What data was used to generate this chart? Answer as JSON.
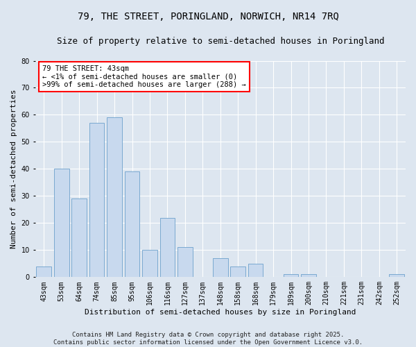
{
  "title": "79, THE STREET, PORINGLAND, NORWICH, NR14 7RQ",
  "subtitle": "Size of property relative to semi-detached houses in Poringland",
  "xlabel": "Distribution of semi-detached houses by size in Poringland",
  "ylabel": "Number of semi-detached properties",
  "bar_color": "#c8d9ee",
  "bar_edge_color": "#6ca0cc",
  "background_color": "#dde6f0",
  "categories": [
    "43sqm",
    "53sqm",
    "64sqm",
    "74sqm",
    "85sqm",
    "95sqm",
    "106sqm",
    "116sqm",
    "127sqm",
    "137sqm",
    "148sqm",
    "158sqm",
    "168sqm",
    "179sqm",
    "189sqm",
    "200sqm",
    "210sqm",
    "221sqm",
    "231sqm",
    "242sqm",
    "252sqm"
  ],
  "values": [
    4,
    40,
    29,
    57,
    59,
    39,
    10,
    22,
    11,
    0,
    7,
    4,
    5,
    0,
    1,
    1,
    0,
    0,
    0,
    0,
    1
  ],
  "ylim": [
    0,
    80
  ],
  "yticks": [
    0,
    10,
    20,
    30,
    40,
    50,
    60,
    70,
    80
  ],
  "annotation_title": "79 THE STREET: 43sqm",
  "annotation_line2": "← <1% of semi-detached houses are smaller (0)",
  "annotation_line3": ">99% of semi-detached houses are larger (288) →",
  "highlight_bar_index": 0,
  "footer_line1": "Contains HM Land Registry data © Crown copyright and database right 2025.",
  "footer_line2": "Contains public sector information licensed under the Open Government Licence v3.0.",
  "grid_color": "#ffffff",
  "title_fontsize": 10,
  "subtitle_fontsize": 9,
  "axis_label_fontsize": 8,
  "tick_fontsize": 7,
  "annotation_fontsize": 7.5,
  "footer_fontsize": 6.5
}
